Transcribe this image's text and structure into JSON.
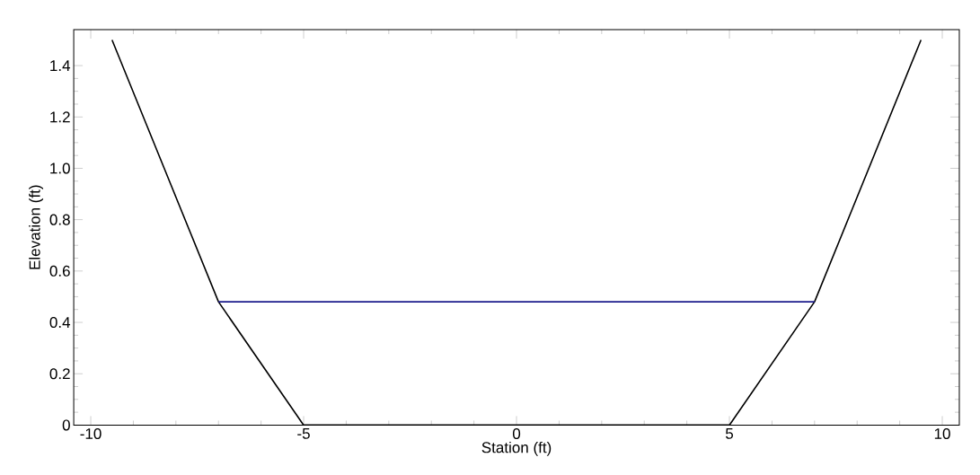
{
  "chart_data": {
    "type": "line",
    "xlabel": "Station (ft)",
    "ylabel": "Elevation (ft)",
    "series": [
      {
        "color": "#000000",
        "x": [
          -9.5,
          -7,
          -5,
          5,
          7,
          9.5
        ],
        "values": [
          1.5,
          0.48,
          0,
          0,
          0.48,
          1.5
        ]
      },
      {
        "color": "#1c1c8c",
        "x": [
          -7,
          7
        ],
        "values": [
          0.48,
          0.48
        ]
      }
    ],
    "xlim": [
      -10.4,
      10.4
    ],
    "ylim": [
      0,
      1.54
    ],
    "xticks": [
      -10,
      -5,
      0,
      5,
      10
    ],
    "yticks": [
      0,
      0.2,
      0.4,
      0.6,
      0.8,
      {
        "value": 1,
        "label": "1.0"
      },
      1.2,
      1.4
    ],
    "grid": false,
    "marker": "none",
    "line_style": "solid"
  }
}
